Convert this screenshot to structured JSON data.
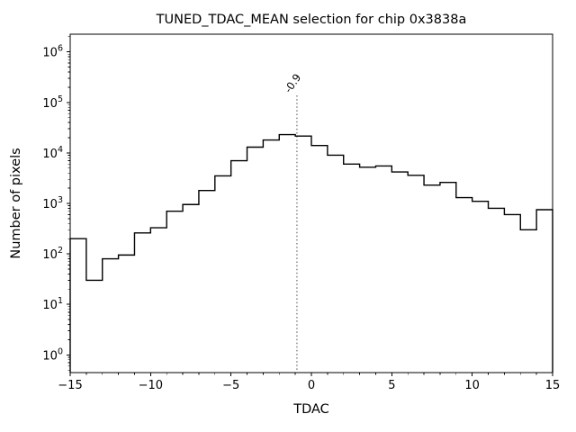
{
  "figure": {
    "title": "TUNED_TDAC_MEAN selection for chip 0x3838a",
    "xlabel": "TDAC",
    "ylabel": "Number of pixels"
  },
  "chart_data": {
    "type": "bar",
    "subtype": "step-histogram",
    "title": "TUNED_TDAC_MEAN selection for chip 0x3838a",
    "xlabel": "TDAC",
    "ylabel": "Number of pixels",
    "x_scale": "linear",
    "y_scale": "log",
    "xlim": [
      -15,
      15
    ],
    "ylog_range": [
      -0.35,
      6.35
    ],
    "grid": "off",
    "legend": "none",
    "line_color": "#000000",
    "bin_edges": [
      -15,
      -14,
      -13,
      -12,
      -11,
      -10,
      -9,
      -8,
      -7,
      -6,
      -5,
      -4,
      -3,
      -2,
      -1,
      0,
      1,
      2,
      3,
      4,
      5,
      6,
      7,
      8,
      9,
      10,
      11,
      12,
      13,
      14,
      15
    ],
    "counts": [
      200,
      30,
      80,
      95,
      260,
      330,
      700,
      950,
      1800,
      3500,
      7000,
      13000,
      18000,
      23000,
      21500,
      14000,
      9000,
      6000,
      5200,
      5500,
      4200,
      3600,
      2300,
      2600,
      1300,
      1100,
      800,
      600,
      300,
      750
    ],
    "x_ticks": [
      {
        "value": -15,
        "label": "−15"
      },
      {
        "value": -10,
        "label": "−10"
      },
      {
        "value": -5,
        "label": "−5"
      },
      {
        "value": 0,
        "label": "0"
      },
      {
        "value": 5,
        "label": "5"
      },
      {
        "value": 10,
        "label": "10"
      },
      {
        "value": 15,
        "label": "15"
      }
    ],
    "y_ticks": [
      {
        "exp": 0,
        "base": "10",
        "sup": "0"
      },
      {
        "exp": 1,
        "base": "10",
        "sup": "1"
      },
      {
        "exp": 2,
        "base": "10",
        "sup": "2"
      },
      {
        "exp": 3,
        "base": "10",
        "sup": "3"
      },
      {
        "exp": 4,
        "base": "10",
        "sup": "4"
      },
      {
        "exp": 5,
        "base": "10",
        "sup": "5"
      },
      {
        "exp": 6,
        "base": "10",
        "sup": "6"
      }
    ],
    "vline": {
      "x": -0.9,
      "label": "-0.9",
      "color": "#7f7f7f",
      "style": "dotted"
    }
  }
}
